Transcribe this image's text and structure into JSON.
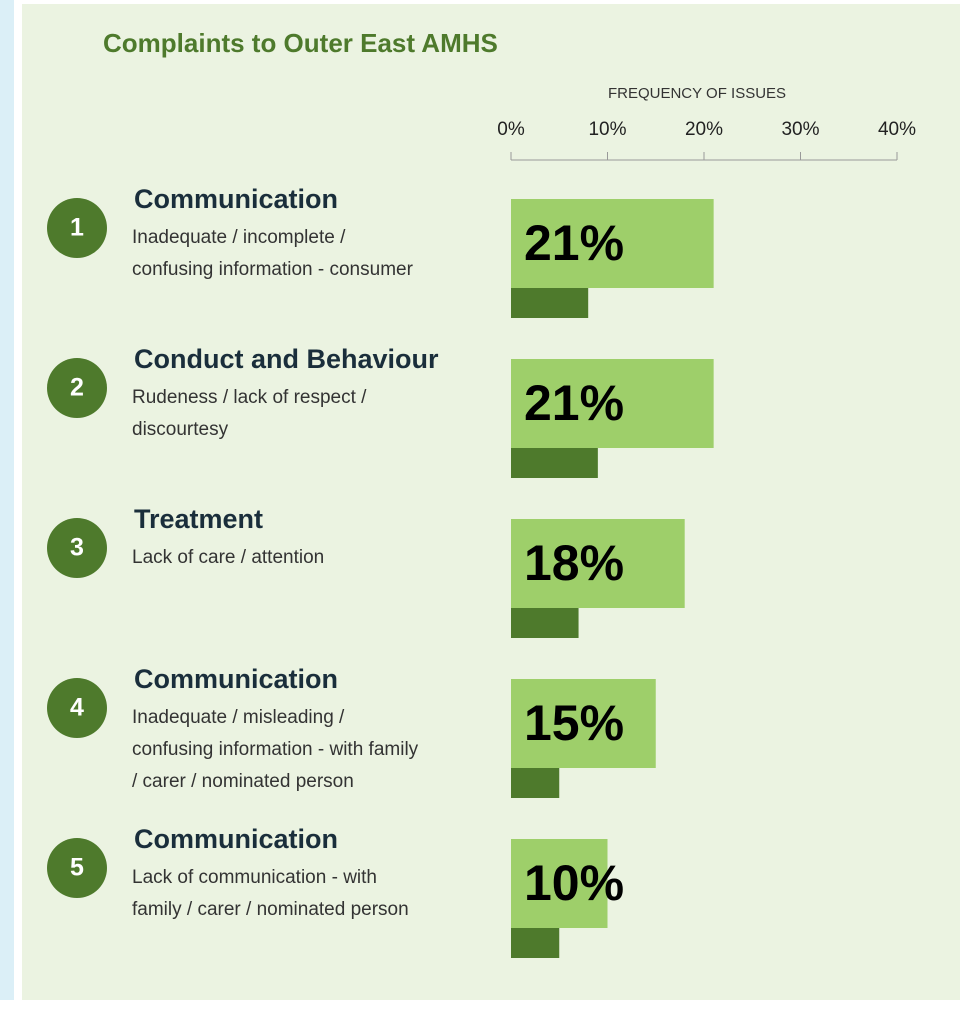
{
  "chart_data": {
    "type": "bar",
    "title": "Complaints to Outer East AMHS",
    "x_label": "FREQUENCY OF ISSUES",
    "items": [
      {
        "number": "1",
        "title": "Communication",
        "description": [
          "Inadequate / incomplete /",
          "confusing information - consumer"
        ]
      },
      {
        "number": "2",
        "title": "Conduct and Behaviour",
        "description": [
          "Rudeness / lack of respect /",
          "discourtesy"
        ]
      },
      {
        "number": "3",
        "title": "Treatment",
        "description": [
          "Lack of care / attention"
        ]
      },
      {
        "number": "4",
        "title": "Communication",
        "description": [
          "Inadequate / misleading /",
          "confusing information - with family",
          "/ carer / nominated person"
        ]
      },
      {
        "number": "5",
        "title": "Communication",
        "description": [
          "Lack of communication - with",
          "family / carer / nominated person"
        ]
      }
    ],
    "series": [
      {
        "color": "#9ecf6a",
        "values": [
          21,
          21,
          18,
          15,
          10
        ],
        "value_labels": [
          "21%",
          "21%",
          "18%",
          "15%",
          "10%"
        ]
      },
      {
        "color": "#4e7a2c",
        "values": [
          8,
          9,
          7,
          5,
          5
        ]
      }
    ],
    "xlim": [
      0,
      40
    ],
    "xticks": [
      {
        "value": 0,
        "label": "0%"
      },
      {
        "value": 10,
        "label": "10%"
      },
      {
        "value": 20,
        "label": "20%"
      },
      {
        "value": 30,
        "label": "30%"
      },
      {
        "value": 40,
        "label": "40%"
      }
    ]
  }
}
